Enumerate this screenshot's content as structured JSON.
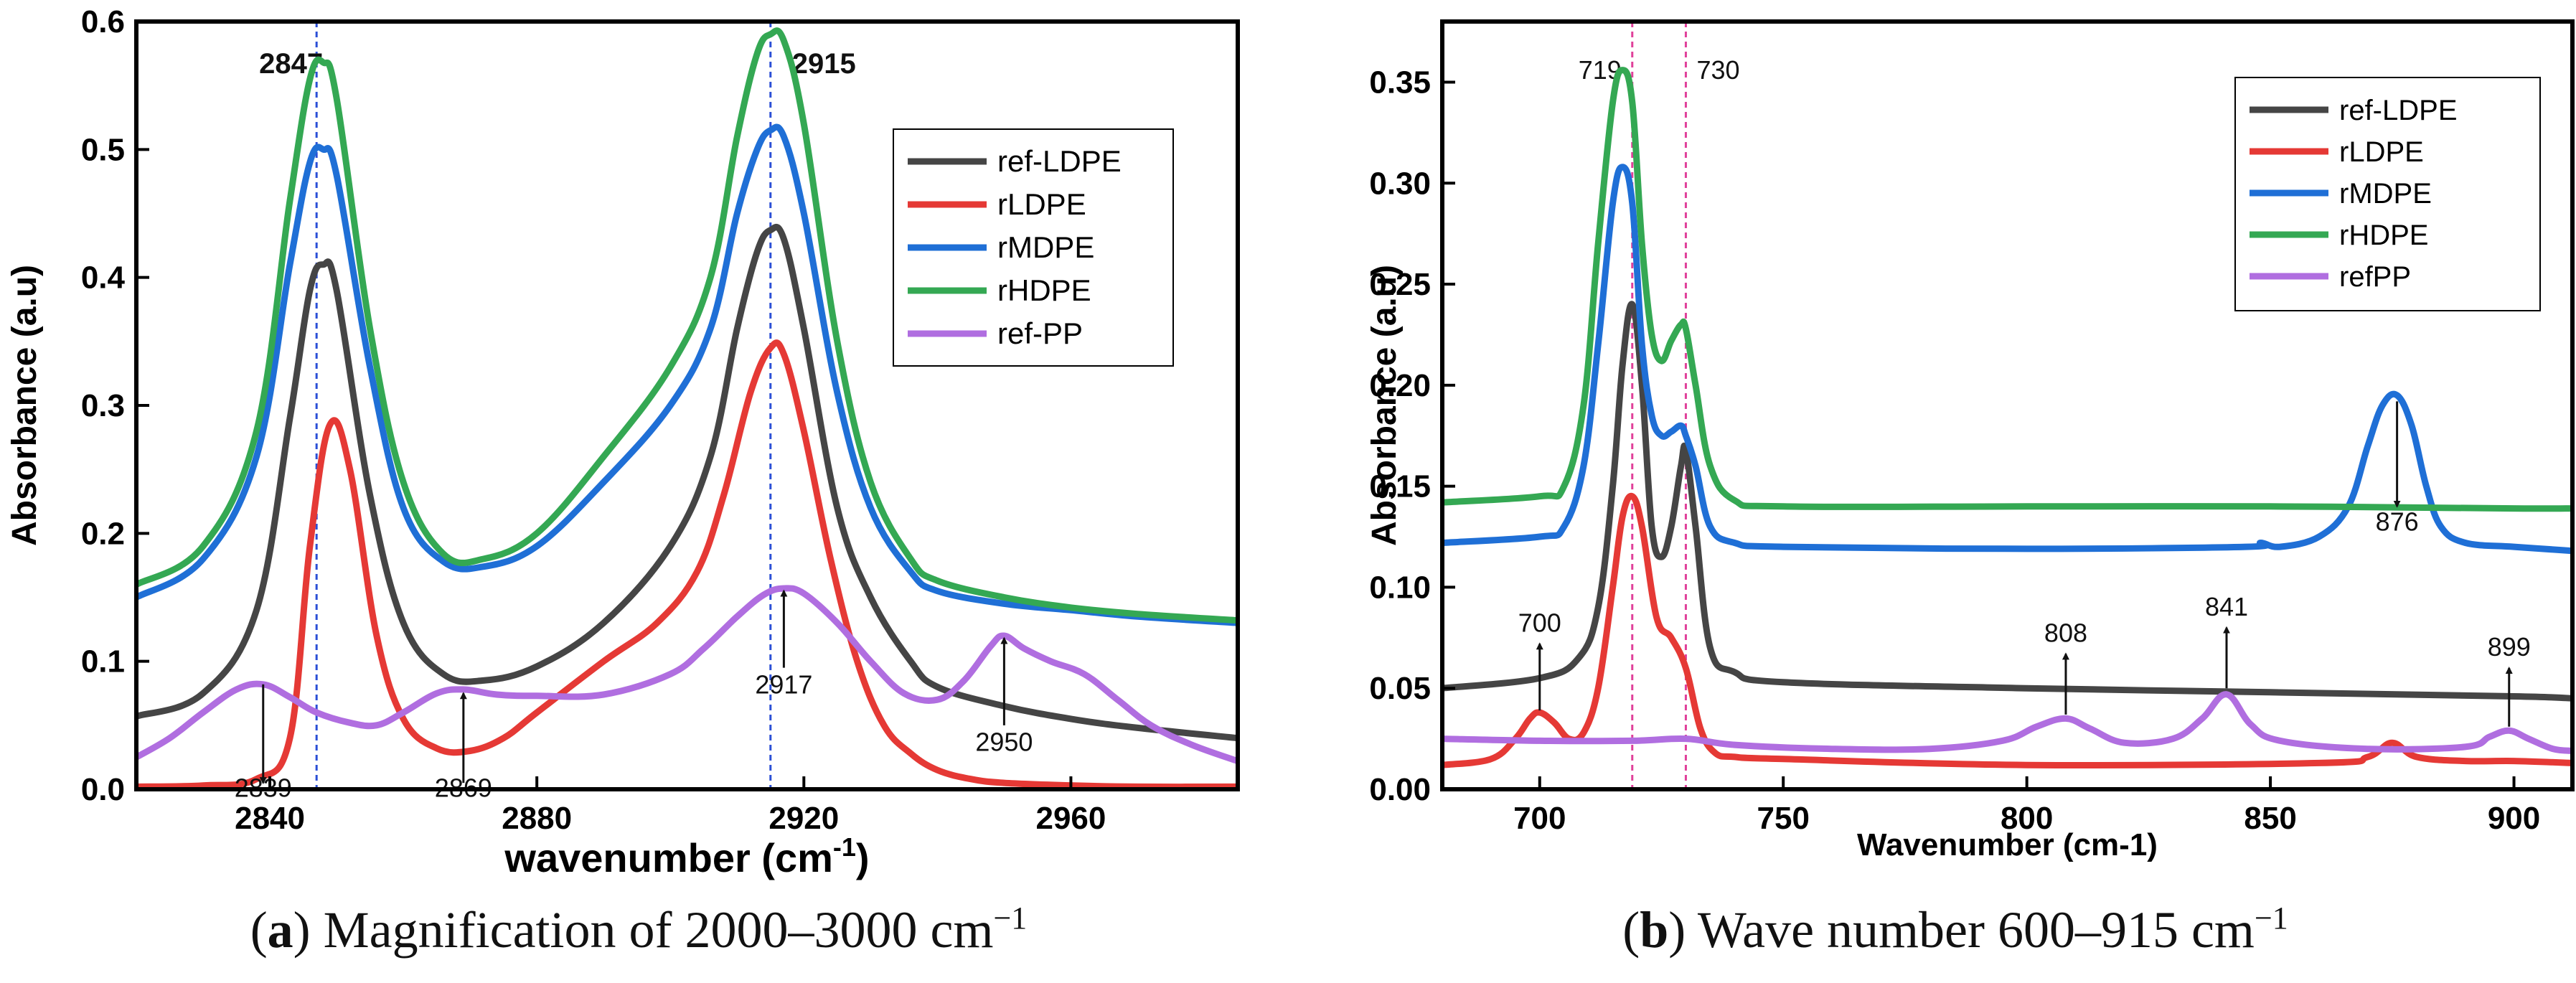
{
  "chart_data": [
    {
      "type": "line",
      "panel": "a",
      "ylabel": "Absorbance (a.u)",
      "xlabel": "wavenumber (cm",
      "xlabel_sup": "-1",
      "xlabel_tail": ")",
      "xlim": [
        2820,
        2985
      ],
      "ylim": [
        0,
        0.6
      ],
      "xticks": [
        2840,
        2880,
        2920,
        2960
      ],
      "yticks": [
        0.0,
        0.1,
        0.2,
        0.3,
        0.4,
        0.5,
        0.6
      ],
      "ytick_labels": [
        "0.0",
        "0.1",
        "0.2",
        "0.3",
        "0.4",
        "0.5",
        "0.6"
      ],
      "legend_position": "top-right",
      "vlines": [
        {
          "x": 2847,
          "label": "2847",
          "color": "#2b4fd6"
        },
        {
          "x": 2915,
          "label": "2915",
          "color": "#2b4fd6"
        }
      ],
      "annotations": [
        {
          "text": "2839",
          "x": 2839,
          "y_from": 0.082,
          "y_to": 0.005,
          "label_y": -0.006
        },
        {
          "text": "2869",
          "x": 2869,
          "y_from": 0.005,
          "y_to": 0.075,
          "label_y": -0.006
        },
        {
          "text": "2917",
          "x": 2917,
          "y_from": 0.095,
          "y_to": 0.155,
          "label_y": 0.075
        },
        {
          "text": "2950",
          "x": 2950,
          "y_from": 0.05,
          "y_to": 0.118,
          "label_y": 0.03
        }
      ],
      "series": [
        {
          "name": "ref-LDPE",
          "color": "#454545",
          "x": [
            2820,
            2830,
            2838,
            2843,
            2846,
            2848,
            2850,
            2855,
            2860,
            2866,
            2872,
            2880,
            2890,
            2900,
            2906,
            2910,
            2913,
            2915,
            2917,
            2920,
            2925,
            2930,
            2936,
            2940,
            2950,
            2960,
            2970,
            2985
          ],
          "y": [
            0.057,
            0.075,
            0.14,
            0.29,
            0.39,
            0.41,
            0.39,
            0.23,
            0.13,
            0.09,
            0.085,
            0.096,
            0.13,
            0.19,
            0.26,
            0.36,
            0.42,
            0.437,
            0.43,
            0.36,
            0.22,
            0.15,
            0.1,
            0.08,
            0.065,
            0.055,
            0.048,
            0.04
          ]
        },
        {
          "name": "rLDPE",
          "color": "#e53935",
          "x": [
            2820,
            2830,
            2838,
            2843,
            2846,
            2849,
            2852,
            2856,
            2860,
            2865,
            2870,
            2875,
            2880,
            2890,
            2898,
            2904,
            2908,
            2912,
            2915,
            2917,
            2920,
            2924,
            2928,
            2932,
            2936,
            2940,
            2945,
            2950,
            2960,
            2970,
            2985
          ],
          "y": [
            0.002,
            0.003,
            0.008,
            0.04,
            0.19,
            0.285,
            0.25,
            0.12,
            0.055,
            0.032,
            0.03,
            0.04,
            0.06,
            0.1,
            0.13,
            0.17,
            0.23,
            0.31,
            0.345,
            0.34,
            0.28,
            0.18,
            0.1,
            0.05,
            0.028,
            0.015,
            0.008,
            0.005,
            0.003,
            0.002,
            0.002
          ]
        },
        {
          "name": "rMDPE",
          "color": "#1f6fd6",
          "x": [
            2820,
            2830,
            2838,
            2843,
            2846,
            2848,
            2850,
            2855,
            2860,
            2866,
            2872,
            2880,
            2890,
            2900,
            2906,
            2910,
            2913,
            2915,
            2917,
            2920,
            2925,
            2930,
            2936,
            2940,
            2950,
            2960,
            2970,
            2985
          ],
          "y": [
            0.15,
            0.18,
            0.26,
            0.41,
            0.49,
            0.5,
            0.48,
            0.33,
            0.22,
            0.178,
            0.174,
            0.19,
            0.24,
            0.3,
            0.36,
            0.45,
            0.5,
            0.515,
            0.51,
            0.45,
            0.31,
            0.22,
            0.17,
            0.155,
            0.145,
            0.14,
            0.135,
            0.13
          ]
        },
        {
          "name": "rHDPE",
          "color": "#34a853",
          "x": [
            2820,
            2830,
            2838,
            2843,
            2846,
            2848,
            2850,
            2855,
            2860,
            2866,
            2872,
            2880,
            2890,
            2900,
            2906,
            2910,
            2913,
            2915,
            2917,
            2920,
            2925,
            2930,
            2936,
            2940,
            2950,
            2960,
            2970,
            2985
          ],
          "y": [
            0.16,
            0.19,
            0.28,
            0.46,
            0.555,
            0.568,
            0.54,
            0.36,
            0.24,
            0.184,
            0.18,
            0.2,
            0.26,
            0.33,
            0.4,
            0.51,
            0.575,
            0.59,
            0.585,
            0.52,
            0.35,
            0.24,
            0.18,
            0.163,
            0.15,
            0.142,
            0.137,
            0.132
          ]
        },
        {
          "name": "ref-PP",
          "color": "#b06ee0",
          "x": [
            2820,
            2825,
            2830,
            2835,
            2839,
            2843,
            2847,
            2852,
            2856,
            2860,
            2865,
            2869,
            2874,
            2880,
            2890,
            2900,
            2905,
            2910,
            2914,
            2917,
            2920,
            2925,
            2930,
            2935,
            2940,
            2944,
            2948,
            2950,
            2953,
            2957,
            2962,
            2967,
            2972,
            2978,
            2985
          ],
          "y": [
            0.025,
            0.04,
            0.06,
            0.078,
            0.082,
            0.072,
            0.06,
            0.052,
            0.05,
            0.06,
            0.075,
            0.078,
            0.074,
            0.073,
            0.074,
            0.09,
            0.11,
            0.135,
            0.152,
            0.157,
            0.153,
            0.13,
            0.1,
            0.075,
            0.07,
            0.085,
            0.112,
            0.12,
            0.11,
            0.1,
            0.09,
            0.07,
            0.05,
            0.035,
            0.022
          ]
        }
      ]
    },
    {
      "type": "line",
      "panel": "b",
      "ylabel": "Absorbance (a.u)",
      "xlabel": "Wavenumber (cm-1)",
      "xlim": [
        680,
        912
      ],
      "ylim": [
        0,
        0.38
      ],
      "xticks": [
        700,
        750,
        800,
        850,
        900
      ],
      "yticks": [
        0.0,
        0.05,
        0.1,
        0.15,
        0.2,
        0.25,
        0.3,
        0.35
      ],
      "ytick_labels": [
        "0.00",
        "0.05",
        "0.10",
        "0.15",
        "0.20",
        "0.25",
        "0.30",
        "0.35"
      ],
      "legend_position": "top-right",
      "vlines": [
        {
          "x": 719,
          "label": "719",
          "color": "#e0409a"
        },
        {
          "x": 730,
          "label": "730",
          "color": "#e0409a"
        }
      ],
      "annotations": [
        {
          "text": "700",
          "x": 700,
          "y_from": 0.039,
          "y_to": 0.072,
          "label_y": 0.078,
          "dir": "up"
        },
        {
          "text": "808",
          "x": 808,
          "y_from": 0.037,
          "y_to": 0.067,
          "label_y": 0.073,
          "dir": "up"
        },
        {
          "text": "841",
          "x": 841,
          "y_from": 0.05,
          "y_to": 0.08,
          "label_y": 0.086,
          "dir": "up"
        },
        {
          "text": "899",
          "x": 899,
          "y_from": 0.031,
          "y_to": 0.06,
          "label_y": 0.066,
          "dir": "up"
        },
        {
          "text": "876",
          "x": 876,
          "y_from": 0.192,
          "y_to": 0.14,
          "label_y": 0.128,
          "dir": "down"
        }
      ],
      "series": [
        {
          "name": "ref-LDPE",
          "color": "#454545",
          "x": [
            680,
            700,
            708,
            712,
            715,
            717,
            719,
            721,
            723,
            725,
            727,
            729,
            730,
            732,
            735,
            740,
            750,
            800,
            850,
            900,
            912
          ],
          "y": [
            0.05,
            0.055,
            0.065,
            0.09,
            0.15,
            0.21,
            0.24,
            0.2,
            0.13,
            0.115,
            0.13,
            0.16,
            0.168,
            0.13,
            0.07,
            0.058,
            0.053,
            0.05,
            0.048,
            0.046,
            0.045
          ]
        },
        {
          "name": "rLDPE",
          "color": "#e53935",
          "x": [
            680,
            690,
            695,
            698,
            700,
            703,
            706,
            709,
            712,
            715,
            717,
            719,
            721,
            724,
            727,
            730,
            733,
            736,
            740,
            750,
            800,
            860,
            870,
            875,
            880,
            890,
            900,
            912
          ],
          "y": [
            0.012,
            0.015,
            0.025,
            0.035,
            0.038,
            0.033,
            0.025,
            0.028,
            0.05,
            0.1,
            0.135,
            0.145,
            0.13,
            0.085,
            0.075,
            0.06,
            0.03,
            0.018,
            0.016,
            0.015,
            0.012,
            0.013,
            0.016,
            0.023,
            0.016,
            0.014,
            0.014,
            0.013
          ]
        },
        {
          "name": "rMDPE",
          "color": "#1f6fd6",
          "x": [
            680,
            700,
            705,
            709,
            712,
            715,
            717,
            719,
            721,
            723,
            725,
            727,
            729,
            730,
            732,
            735,
            740,
            750,
            800,
            845,
            848,
            852,
            860,
            866,
            870,
            873,
            876,
            879,
            882,
            885,
            890,
            900,
            912
          ],
          "y": [
            0.122,
            0.125,
            0.13,
            0.16,
            0.22,
            0.29,
            0.308,
            0.29,
            0.22,
            0.185,
            0.175,
            0.177,
            0.18,
            0.175,
            0.16,
            0.13,
            0.122,
            0.12,
            0.119,
            0.12,
            0.122,
            0.12,
            0.125,
            0.14,
            0.17,
            0.19,
            0.195,
            0.18,
            0.15,
            0.13,
            0.122,
            0.12,
            0.118
          ]
        },
        {
          "name": "rHDPE",
          "color": "#34a853",
          "x": [
            680,
            700,
            705,
            709,
            712,
            715,
            717,
            719,
            721,
            723,
            725,
            727,
            729,
            730,
            732,
            735,
            740,
            750,
            800,
            850,
            900,
            912
          ],
          "y": [
            0.142,
            0.145,
            0.15,
            0.19,
            0.27,
            0.34,
            0.356,
            0.34,
            0.27,
            0.225,
            0.212,
            0.222,
            0.23,
            0.228,
            0.2,
            0.16,
            0.143,
            0.14,
            0.14,
            0.14,
            0.139,
            0.139
          ]
        },
        {
          "name": "refPP",
          "color": "#b06ee0",
          "x": [
            680,
            700,
            719,
            730,
            740,
            760,
            780,
            795,
            802,
            808,
            813,
            820,
            830,
            836,
            841,
            846,
            852,
            870,
            890,
            895,
            899,
            903,
            908,
            912
          ],
          "y": [
            0.025,
            0.024,
            0.024,
            0.025,
            0.022,
            0.02,
            0.02,
            0.024,
            0.031,
            0.035,
            0.03,
            0.023,
            0.025,
            0.035,
            0.047,
            0.032,
            0.024,
            0.02,
            0.021,
            0.026,
            0.029,
            0.025,
            0.02,
            0.019
          ]
        }
      ]
    }
  ],
  "captions": [
    {
      "paren_open": "(",
      "letter": "a",
      "paren_close": ")",
      "text": " Magnification of 2000–3000 cm",
      "sup": "−1"
    },
    {
      "paren_open": "(",
      "letter": "b",
      "paren_close": ")",
      "text": " Wave number 600–915 cm",
      "sup": "−1"
    }
  ]
}
